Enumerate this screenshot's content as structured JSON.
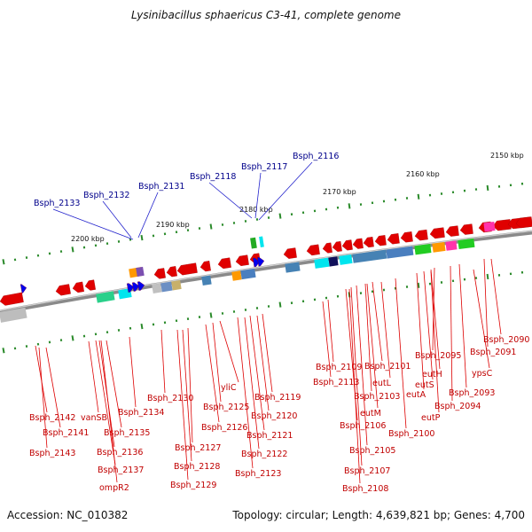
{
  "title": "Lysinibacillus sphaericus C3-41, complete genome",
  "footer": {
    "accession": "Accession: NC_010382",
    "summary": "Topology: circular; Length: 4,639,821 bp; Genes: 4,700"
  },
  "colors": {
    "backbone": "#888888",
    "gene_arrow": "#e00000",
    "label_red": "#c00000",
    "label_blue": "#00008b",
    "tick": "#2a8a2a"
  },
  "scale_labels": [
    "2150 kbp",
    "2160 kbp",
    "2170 kbp",
    "2180 kbp",
    "2190 kbp",
    "2200 kbp"
  ],
  "top_labels": [
    "Bsph_2133",
    "Bsph_2132",
    "Bsph_2131",
    "Bsph_2118",
    "Bsph_2117",
    "Bsph_2116"
  ],
  "bottom_labels": [
    "Bsph_2142",
    "Bsph_2141",
    "Bsph_2143",
    "vanSB",
    "Bsph_2135",
    "Bsph_2136",
    "Bsph_2137",
    "ompR2",
    "Bsph_2134",
    "Bsph_2130",
    "Bsph_2127",
    "Bsph_2128",
    "Bsph_2129",
    "Bsph_2126",
    "yliC",
    "Bsph_2125",
    "Bsph_2119",
    "Bsph_2120",
    "Bsph_2121",
    "Bsph_2122",
    "Bsph_2123",
    "Bsph_2109",
    "Bsph_2113",
    "Bsph_2101",
    "eutL",
    "Bsph_2103",
    "eutM",
    "Bsph_2106",
    "Bsph_2105",
    "Bsph_2107",
    "Bsph_2108",
    "eutH",
    "eutS",
    "eutA",
    "Bsph_2100",
    "eutP",
    "Bsph_2095",
    "Bsph_2094",
    "Bsph_2093",
    "ypsC",
    "Bsph_2091",
    "Bsph_2090"
  ]
}
